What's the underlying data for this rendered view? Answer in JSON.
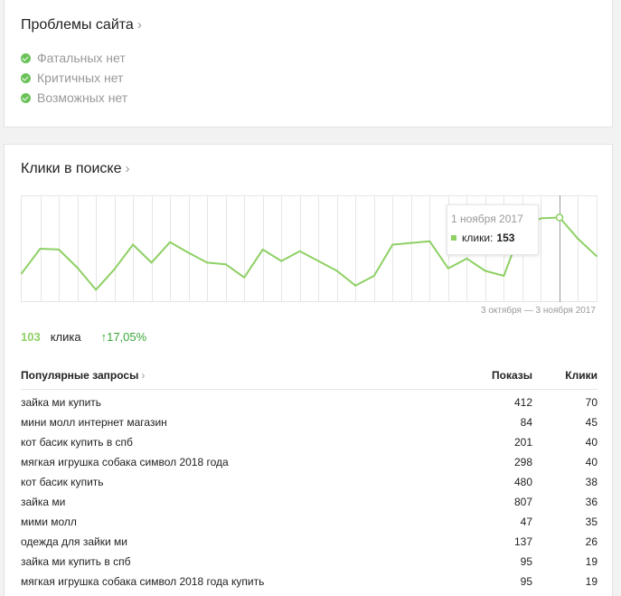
{
  "problems": {
    "title": "Проблемы сайта",
    "chevron": "›",
    "items": [
      {
        "label": "Фатальных нет",
        "icon": "check-circle-icon"
      },
      {
        "label": "Критичных нет",
        "icon": "check-circle-icon"
      },
      {
        "label": "Возможных нет",
        "icon": "check-circle-icon"
      }
    ]
  },
  "clicks": {
    "title": "Клики в поиске",
    "chevron": "›",
    "range_label": "3 октября — 3 ноября 2017",
    "tooltip": {
      "date": "1 ноября 2017",
      "label": "клики:",
      "value": "153"
    },
    "summary": {
      "count": "103",
      "unit": "клика",
      "delta": "↑17,05%"
    },
    "colors": {
      "line": "#8ed064",
      "grid": "#e6e6e6",
      "accent": "#6ac259",
      "delta": "#3aa63a"
    }
  },
  "chart_data": {
    "type": "line",
    "x": [
      "2017-10-03",
      "2017-10-04",
      "2017-10-05",
      "2017-10-06",
      "2017-10-07",
      "2017-10-08",
      "2017-10-09",
      "2017-10-10",
      "2017-10-11",
      "2017-10-12",
      "2017-10-13",
      "2017-10-14",
      "2017-10-15",
      "2017-10-16",
      "2017-10-17",
      "2017-10-18",
      "2017-10-19",
      "2017-10-20",
      "2017-10-21",
      "2017-10-22",
      "2017-10-23",
      "2017-10-24",
      "2017-10-25",
      "2017-10-26",
      "2017-10-27",
      "2017-10-28",
      "2017-10-29",
      "2017-10-30",
      "2017-10-31",
      "2017-11-01",
      "2017-11-02",
      "2017-11-03"
    ],
    "series": [
      {
        "values": [
          85,
          115,
          114,
          92,
          65,
          90,
          120,
          98,
          123,
          110,
          98,
          96,
          80,
          114,
          100,
          112,
          100,
          88,
          70,
          82,
          120,
          122,
          124,
          91,
          103,
          88,
          82,
          142,
          152,
          153,
          127,
          106
        ]
      }
    ],
    "ylim": [
      50,
      180
    ],
    "grid": true,
    "highlight_x": "2017-11-01"
  },
  "queries": {
    "title": "Популярные запросы",
    "chevron": "›",
    "col_shows": "Показы",
    "col_clicks": "Клики",
    "rows": [
      {
        "q": "зайка ми купить",
        "shows": "412",
        "clicks": "70"
      },
      {
        "q": "мини молл интернет магазин",
        "shows": "84",
        "clicks": "45"
      },
      {
        "q": "кот басик купить в спб",
        "shows": "201",
        "clicks": "40"
      },
      {
        "q": "мягкая игрушка собака символ 2018 года",
        "shows": "298",
        "clicks": "40"
      },
      {
        "q": "кот басик купить",
        "shows": "480",
        "clicks": "38"
      },
      {
        "q": "зайка ми",
        "shows": "807",
        "clicks": "36"
      },
      {
        "q": "мими молл",
        "shows": "47",
        "clicks": "35"
      },
      {
        "q": "одежда для зайки ми",
        "shows": "137",
        "clicks": "26"
      },
      {
        "q": "зайка ми купить в спб",
        "shows": "95",
        "clicks": "19"
      },
      {
        "q": "мягкая игрушка собака символ 2018 года купить",
        "shows": "95",
        "clicks": "19"
      }
    ]
  }
}
